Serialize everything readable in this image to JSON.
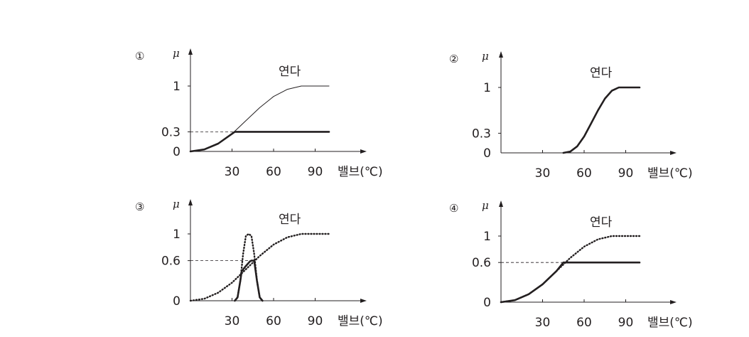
{
  "chart_data": [
    {
      "type": "line",
      "panel_number": "①",
      "ylabel": "μ",
      "xlabel": "밸브(℃)",
      "curve_label": "연다",
      "x_ticks": [
        "30",
        "60",
        "90"
      ],
      "y_ticks": [
        "0",
        "0.3",
        "1"
      ],
      "ylim": [
        0,
        1
      ],
      "xlim": [
        0,
        100
      ],
      "dashed_level": 0.3,
      "series": [
        {
          "style": "thin",
          "x": [
            0,
            10,
            20,
            30,
            40,
            50,
            60,
            70,
            80,
            90,
            100
          ],
          "y": [
            0,
            0.03,
            0.12,
            0.27,
            0.47,
            0.67,
            0.84,
            0.95,
            1.0,
            1.0,
            1.0
          ]
        },
        {
          "style": "thick",
          "x": [
            0,
            10,
            20,
            30,
            32,
            40,
            60,
            80,
            100
          ],
          "y": [
            0,
            0.03,
            0.12,
            0.27,
            0.3,
            0.3,
            0.3,
            0.3,
            0.3
          ]
        }
      ]
    },
    {
      "type": "line",
      "panel_number": "②",
      "ylabel": "μ",
      "xlabel": "밸브(℃)",
      "curve_label": "연다",
      "x_ticks": [
        "30",
        "60",
        "90"
      ],
      "y_ticks": [
        "0",
        "0.3",
        "1"
      ],
      "ylim": [
        0,
        1
      ],
      "xlim": [
        0,
        100
      ],
      "series": [
        {
          "style": "thick",
          "x": [
            45,
            50,
            55,
            60,
            65,
            70,
            75,
            80,
            85,
            90,
            100
          ],
          "y": [
            0,
            0.02,
            0.1,
            0.25,
            0.45,
            0.65,
            0.83,
            0.95,
            1.0,
            1.0,
            1.0
          ]
        }
      ]
    },
    {
      "type": "line",
      "panel_number": "③",
      "ylabel": "μ",
      "xlabel": "밸브(℃)",
      "curve_label": "연다",
      "x_ticks": [
        "30",
        "60",
        "90"
      ],
      "y_ticks": [
        "0",
        "0.6",
        "1"
      ],
      "ylim": [
        0,
        1
      ],
      "xlim": [
        0,
        100
      ],
      "dashed_level": 0.6,
      "series": [
        {
          "style": "dotted",
          "x": [
            0,
            10,
            20,
            30,
            40,
            50,
            60,
            70,
            80,
            90,
            100
          ],
          "y": [
            0,
            0.03,
            0.12,
            0.27,
            0.47,
            0.67,
            0.84,
            0.95,
            1.0,
            1.0,
            1.0
          ]
        },
        {
          "style": "dotted",
          "x": [
            32,
            34,
            36,
            38,
            40,
            42,
            44,
            46,
            48,
            50,
            52
          ],
          "y": [
            0,
            0.05,
            0.3,
            0.7,
            0.97,
            1.0,
            0.97,
            0.7,
            0.3,
            0.05,
            0
          ]
        },
        {
          "style": "thick",
          "x": [
            32,
            34,
            36,
            37,
            40,
            43,
            44,
            46,
            48,
            50,
            52
          ],
          "y": [
            0,
            0.05,
            0.3,
            0.44,
            0.52,
            0.59,
            0.6,
            0.6,
            0.3,
            0.05,
            0
          ]
        }
      ]
    },
    {
      "type": "line",
      "panel_number": "④",
      "ylabel": "μ",
      "xlabel": "밸브(℃)",
      "curve_label": "연다",
      "x_ticks": [
        "30",
        "60",
        "90"
      ],
      "y_ticks": [
        "0",
        "0.6",
        "1"
      ],
      "ylim": [
        0,
        1
      ],
      "xlim": [
        0,
        100
      ],
      "dashed_level": 0.6,
      "series": [
        {
          "style": "dotted",
          "x": [
            0,
            10,
            20,
            30,
            40,
            50,
            60,
            70,
            80,
            90,
            100
          ],
          "y": [
            0,
            0.03,
            0.12,
            0.27,
            0.47,
            0.67,
            0.84,
            0.95,
            1.0,
            1.0,
            1.0
          ]
        },
        {
          "style": "thick",
          "x": [
            0,
            10,
            20,
            30,
            40,
            45,
            60,
            80,
            100
          ],
          "y": [
            0,
            0.03,
            0.12,
            0.27,
            0.47,
            0.6,
            0.6,
            0.6,
            0.6
          ]
        }
      ]
    }
  ]
}
